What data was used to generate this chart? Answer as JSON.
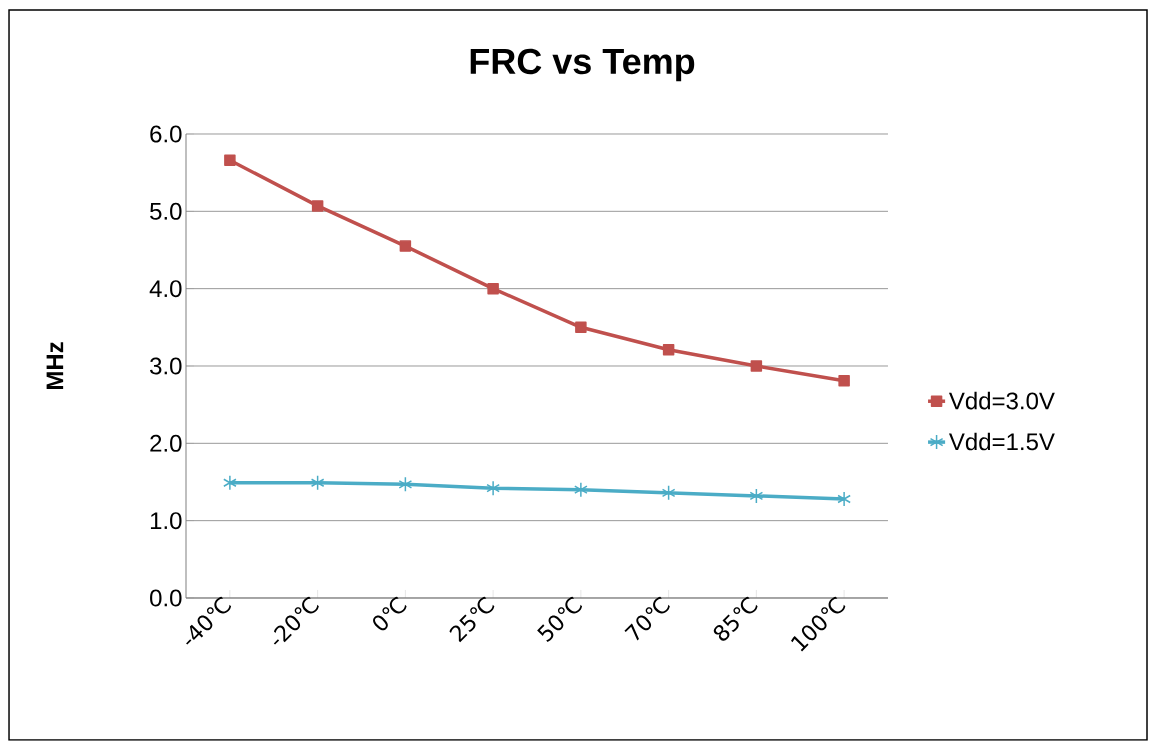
{
  "chart_data": {
    "type": "line",
    "title": "FRC vs Temp",
    "ylabel": "MHz",
    "categories": [
      "-40℃",
      "-20℃",
      "0℃",
      "25℃",
      "50℃",
      "70℃",
      "85℃",
      "100℃"
    ],
    "series": [
      {
        "name": "Vdd=3.0V",
        "color": "#c0504d",
        "marker": "square",
        "values": [
          5.66,
          5.07,
          4.55,
          4.0,
          3.5,
          3.21,
          3.0,
          2.81
        ]
      },
      {
        "name": "Vdd=1.5V",
        "color": "#4bacc6",
        "marker": "cross",
        "values": [
          1.49,
          1.49,
          1.47,
          1.42,
          1.4,
          1.36,
          1.32,
          1.28
        ]
      }
    ],
    "ylim": [
      0,
      6
    ],
    "yticks": [
      {
        "value": 0,
        "label": "0.0"
      },
      {
        "value": 1,
        "label": "1.0"
      },
      {
        "value": 2,
        "label": "2.0"
      },
      {
        "value": 3,
        "label": "3.0"
      },
      {
        "value": 4,
        "label": "4.0"
      },
      {
        "value": 5,
        "label": "5.0"
      },
      {
        "value": 6,
        "label": "6.0"
      }
    ],
    "grid": "y",
    "legend": "right",
    "line_style": "solid"
  }
}
